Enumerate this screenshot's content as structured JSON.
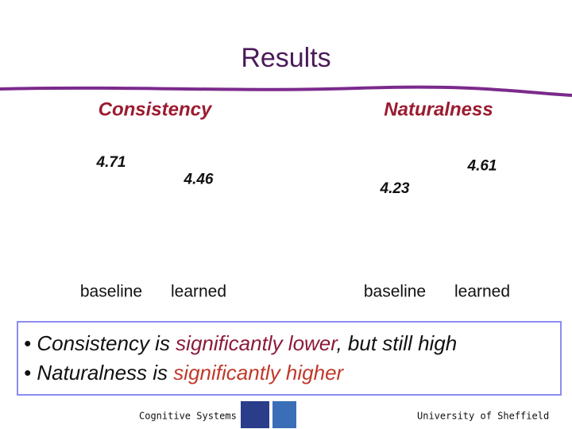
{
  "title": "Results",
  "chart_data": [
    {
      "type": "bar",
      "title": "Consistency",
      "categories": [
        "baseline",
        "learned"
      ],
      "values": [
        4.71,
        4.46
      ],
      "color": "#ffffff",
      "ylim": [
        3.25,
        5
      ]
    },
    {
      "type": "bar",
      "title": "Naturalness",
      "categories": [
        "baseline",
        "learned"
      ],
      "values": [
        4.23,
        4.61
      ],
      "color": "#ffffff",
      "ylim": [
        3,
        5
      ]
    }
  ],
  "bullets": [
    [
      {
        "text": "• Consistency is ",
        "color": "#111111"
      },
      {
        "text": "significantly lower",
        "color": "#8b1a3a"
      },
      {
        "text": ", but still high",
        "color": "#111111"
      }
    ],
    [
      {
        "text": "• Naturalness is ",
        "color": "#111111"
      },
      {
        "text": "significantly higher",
        "color": "#c0392b"
      }
    ]
  ],
  "footer": {
    "left": "Cognitive Systems",
    "right": "University of Sheffield"
  }
}
